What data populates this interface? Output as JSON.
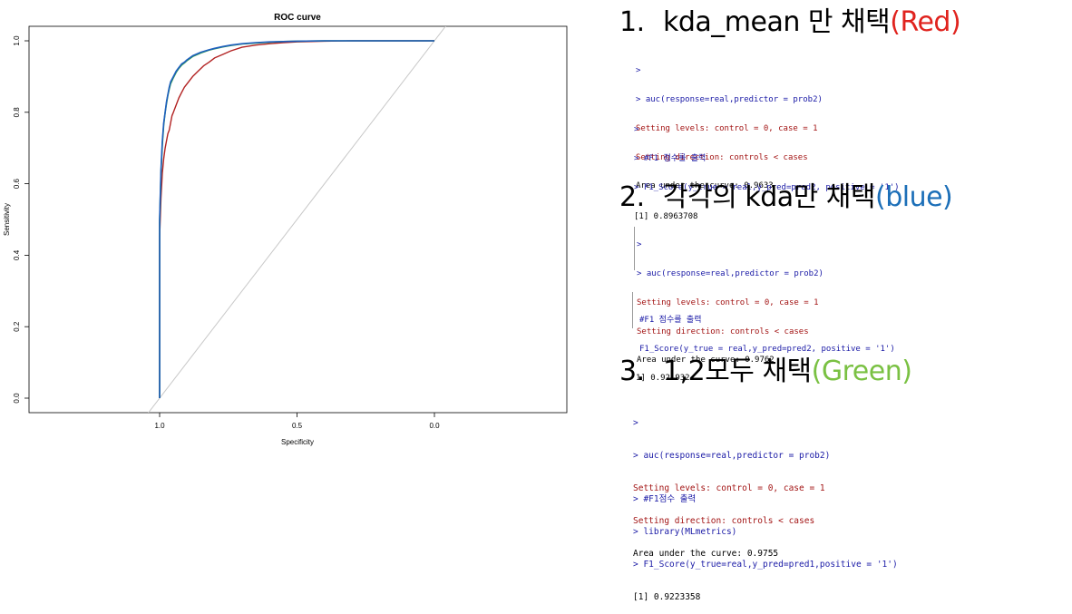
{
  "chart_data": {
    "type": "line",
    "title": "ROC curve",
    "xlabel": "Specificity",
    "ylabel": "Sensitivity",
    "xlim": [
      1.5,
      -0.5
    ],
    "ylim": [
      0,
      1
    ],
    "x_ticks": [
      "1.0",
      "0.5",
      "0.0"
    ],
    "y_ticks": [
      "0.0",
      "0.2",
      "0.4",
      "0.6",
      "0.8",
      "1.0"
    ],
    "diagonal": {
      "color": "#c8c8c8",
      "points": [
        [
          1.0,
          0.0
        ],
        [
          0.0,
          1.0
        ]
      ]
    },
    "series": [
      {
        "color": "#b22222",
        "specificity": [
          1.0,
          1.0,
          0.995,
          0.99,
          0.985,
          0.98,
          0.975,
          0.97,
          0.965,
          0.96,
          0.955,
          0.95,
          0.94,
          0.93,
          0.92,
          0.91,
          0.9,
          0.88,
          0.86,
          0.84,
          0.82,
          0.8,
          0.77,
          0.74,
          0.7,
          0.65,
          0.6,
          0.55,
          0.5,
          0.4,
          0.3,
          0.2,
          0.1,
          0.0
        ],
        "sensitivity": [
          0.0,
          0.45,
          0.56,
          0.63,
          0.67,
          0.7,
          0.72,
          0.74,
          0.75,
          0.77,
          0.79,
          0.8,
          0.82,
          0.84,
          0.855,
          0.87,
          0.88,
          0.9,
          0.915,
          0.93,
          0.94,
          0.952,
          0.962,
          0.972,
          0.982,
          0.988,
          0.992,
          0.995,
          0.997,
          0.999,
          1.0,
          1.0,
          1.0,
          1.0
        ]
      },
      {
        "color": "#1f5fbf",
        "specificity": [
          1.0,
          1.0,
          0.995,
          0.99,
          0.985,
          0.98,
          0.975,
          0.97,
          0.965,
          0.96,
          0.95,
          0.94,
          0.93,
          0.92,
          0.91,
          0.9,
          0.88,
          0.85,
          0.82,
          0.8,
          0.77,
          0.74,
          0.7,
          0.65,
          0.6,
          0.55,
          0.5,
          0.4,
          0.3,
          0.2,
          0.1,
          0.0
        ],
        "sensitivity": [
          0.0,
          0.5,
          0.64,
          0.72,
          0.77,
          0.8,
          0.83,
          0.85,
          0.87,
          0.885,
          0.9,
          0.915,
          0.925,
          0.935,
          0.94,
          0.947,
          0.958,
          0.968,
          0.975,
          0.979,
          0.984,
          0.988,
          0.992,
          0.995,
          0.997,
          0.998,
          0.999,
          1.0,
          1.0,
          1.0,
          1.0,
          1.0
        ]
      },
      {
        "color": "#2e9a4e",
        "specificity": [
          1.0,
          1.0,
          0.995,
          0.99,
          0.985,
          0.98,
          0.975,
          0.97,
          0.965,
          0.96,
          0.95,
          0.94,
          0.93,
          0.92,
          0.91,
          0.9,
          0.88,
          0.85,
          0.82,
          0.8,
          0.77,
          0.74,
          0.7,
          0.65,
          0.6,
          0.55,
          0.5,
          0.4,
          0.3,
          0.2,
          0.1,
          0.0
        ],
        "sensitivity": [
          0.0,
          0.49,
          0.63,
          0.71,
          0.765,
          0.8,
          0.825,
          0.848,
          0.865,
          0.88,
          0.897,
          0.912,
          0.923,
          0.932,
          0.938,
          0.945,
          0.956,
          0.966,
          0.974,
          0.978,
          0.983,
          0.987,
          0.991,
          0.994,
          0.996,
          0.998,
          0.999,
          1.0,
          1.0,
          1.0,
          1.0,
          1.0
        ]
      }
    ],
    "grid": false,
    "legend": "none"
  },
  "headings": [
    {
      "num": "1.",
      "text": "kda_mean 만 채택",
      "paren": "(Red)",
      "paren_color": "#e0231e"
    },
    {
      "num": "2.",
      "text": "각각의 kda만 채택",
      "paren": "(blue)",
      "paren_color": "#1c6fb8"
    },
    {
      "num": "3.",
      "text": "1,2모두 채택",
      "paren": "(Green)",
      "paren_color": "#7ac143"
    }
  ],
  "consoles": [
    {
      "lines": [
        {
          "text": ">",
          "color": "blue"
        },
        {
          "text": "> auc(response=real,predictor = prob2)",
          "color": "blue"
        },
        {
          "text": "Setting levels: control = 0, case = 1",
          "color": "red"
        },
        {
          "text": "Setting direction: controls < cases",
          "color": "red"
        },
        {
          "text": "Area under the curve: 0.9633",
          "color": "blk"
        }
      ]
    },
    {
      "lines": [
        {
          "text": ">",
          "color": "blue"
        },
        {
          "text": "> #F1 점수를 출력",
          "color": "blue"
        },
        {
          "text": "> F1_Score(y_true = real,y_pred=pred2, positive = '1')",
          "color": "blue"
        },
        {
          "text": "[1] 0.8963708",
          "color": "blk"
        }
      ]
    },
    {
      "lines": [
        {
          "text": ">",
          "color": "blue"
        },
        {
          "text": "> auc(response=real,predictor = prob2)",
          "color": "blue"
        },
        {
          "text": "Setting levels: control = 0, case = 1",
          "color": "red"
        },
        {
          "text": "Setting direction: controls < cases",
          "color": "red"
        },
        {
          "text": "Area under the curve: 0.9762",
          "color": "blk"
        }
      ]
    },
    {
      "lines": [
        {
          "text": "#F1 점수를 출력",
          "color": "blue"
        },
        {
          "text": "F1_Score(y_true = real,y_pred=pred2, positive = '1')",
          "color": "blue"
        },
        {
          "text": "1] 0.921932",
          "color": "blk"
        }
      ]
    },
    {
      "lines": [
        {
          "text": ">",
          "color": "blue"
        },
        {
          "text": "> auc(response=real,predictor = prob2)",
          "color": "blue"
        },
        {
          "text": "Setting levels: control = 0, case = 1",
          "color": "red"
        },
        {
          "text": "Setting direction: controls < cases",
          "color": "red"
        },
        {
          "text": "Area under the curve: 0.9755",
          "color": "blk"
        }
      ]
    },
    {
      "lines": [
        {
          "text": "> #F1점수 출력",
          "color": "blue"
        },
        {
          "text": "> library(MLmetrics)",
          "color": "blue"
        },
        {
          "text": "> F1_Score(y_true=real,y_pred=pred1,positive = '1')",
          "color": "blue"
        },
        {
          "text": "[1] 0.9223358",
          "color": "blk"
        }
      ]
    }
  ]
}
